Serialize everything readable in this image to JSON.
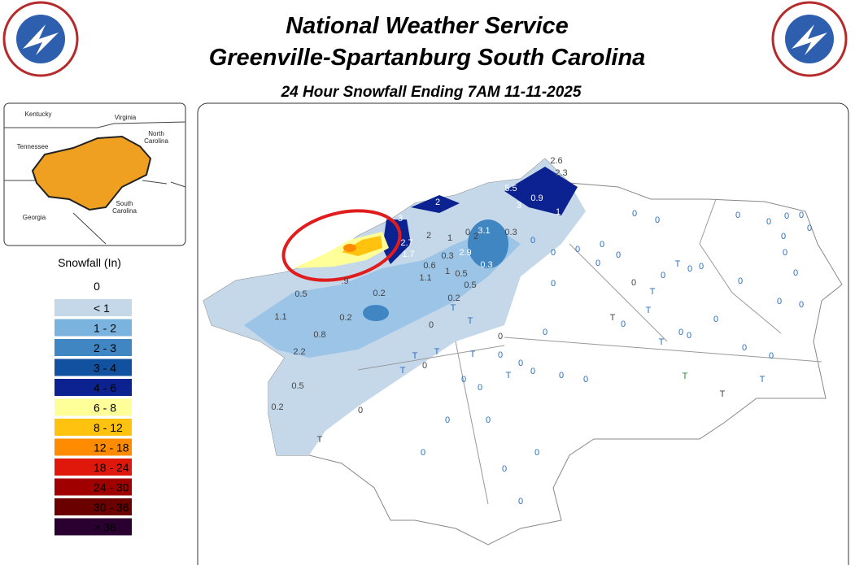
{
  "header": {
    "title": "National Weather Service",
    "subtitle": "Greenville-Spartanburg South Carolina",
    "product": "24 Hour Snowfall Ending 7AM 11-11-2025"
  },
  "inset": {
    "labels": [
      "Kentucky",
      "Virginia",
      "North Carolina",
      "Tennessee",
      "South Carolina",
      "Georgia"
    ]
  },
  "legend": {
    "title": "Snowfall (In)",
    "zero": "0",
    "items": [
      {
        "label": "< 1",
        "color": "#c5d8ea"
      },
      {
        "label": "1 - 2",
        "color": "#7ab3dd"
      },
      {
        "label": "2 - 3",
        "color": "#3f86c2"
      },
      {
        "label": "3 - 4",
        "color": "#11519f"
      },
      {
        "label": "4 - 6",
        "color": "#0b2290"
      },
      {
        "label": "6 - 8",
        "color": "#ffff99"
      },
      {
        "label": "8 - 12",
        "color": "#ffc20e"
      },
      {
        "label": "12 - 18",
        "color": "#ff8c00"
      },
      {
        "label": "18 - 24",
        "color": "#e0180c"
      },
      {
        "label": "24 - 30",
        "color": "#a00000"
      },
      {
        "label": "30 - 36",
        "color": "#6b0000"
      },
      {
        "label": "> 36",
        "color": "#2a0030"
      }
    ]
  },
  "stations": [
    "2.6",
    "2.3",
    "5.5",
    "0.9",
    "3",
    "1",
    "2",
    "3",
    "2.7",
    "1.7",
    "2",
    "1",
    "0",
    "3.1",
    "0.3",
    "2",
    "0.6",
    "0.3",
    "2.9",
    "1",
    "0.5",
    "0.3",
    "1.1",
    "0.5",
    "0.5",
    "0.2",
    ".9",
    "1.1",
    "0.2",
    "0.8",
    "2.2",
    "0.5",
    "0.2",
    "0.2",
    "T",
    "T",
    "0",
    "0",
    "T",
    "T",
    "T",
    "0",
    "0",
    "T",
    "0",
    "0",
    "0",
    "0",
    "0",
    "0",
    "0",
    "0",
    "0",
    "0",
    "0",
    "0",
    "0",
    "0",
    "0",
    "0",
    "0",
    "T",
    "0",
    "0",
    "0",
    "T",
    "T",
    "T",
    "0",
    "0",
    "T",
    "0",
    "0",
    "0",
    "T",
    "T",
    "T",
    "T",
    "T",
    "0",
    "0",
    "0",
    "0",
    "0",
    "0",
    "0",
    "0",
    "0",
    "0",
    "0",
    "0",
    "0",
    "0",
    "0",
    "0",
    "0",
    "0",
    "0"
  ]
}
